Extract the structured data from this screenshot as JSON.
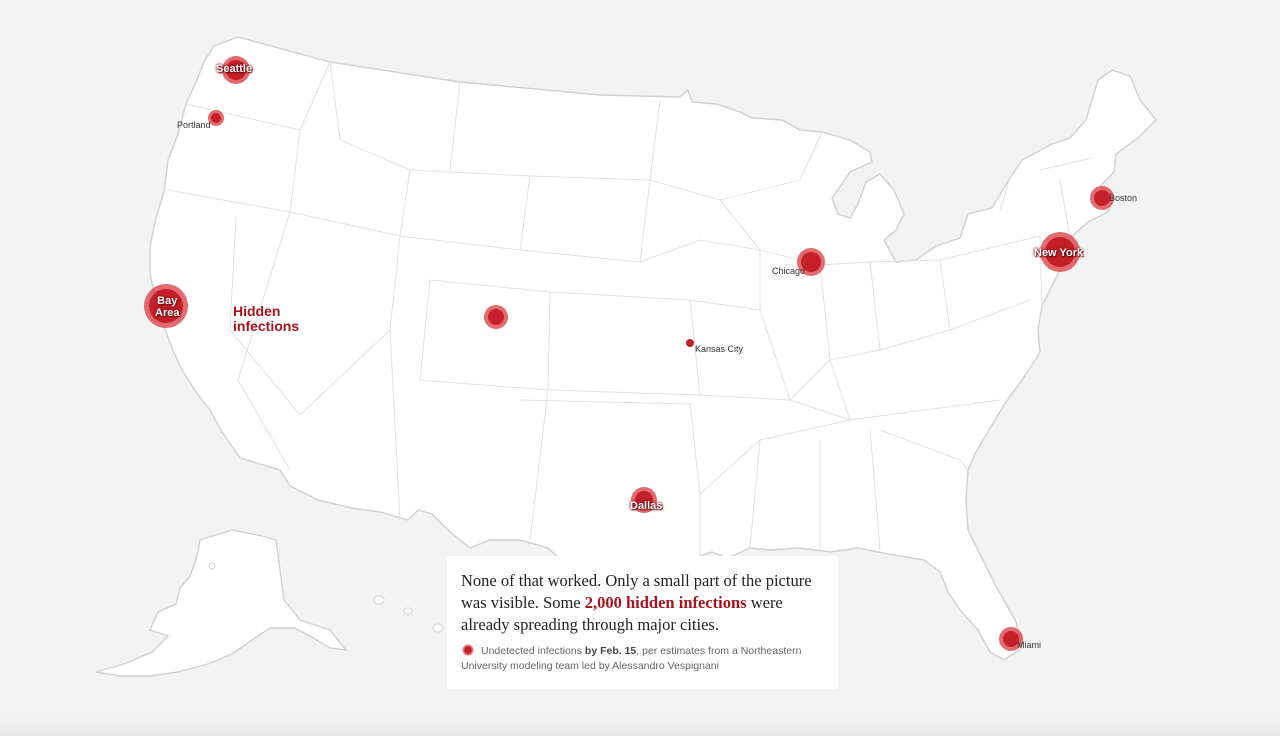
{
  "map": {
    "overlay_label": "Hidden\ninfections",
    "cities": [
      {
        "name": "Seattle",
        "style": "big"
      },
      {
        "name": "Portland",
        "style": "small"
      },
      {
        "name": "Bay\nArea",
        "style": "big"
      },
      {
        "name": "Chicago",
        "style": "small"
      },
      {
        "name": "Kansas City",
        "style": "small"
      },
      {
        "name": "Boston",
        "style": "small"
      },
      {
        "name": "New York",
        "style": "big"
      },
      {
        "name": "Dallas",
        "style": "big"
      },
      {
        "name": "Miami",
        "style": "small"
      }
    ],
    "blob_color": "#c5202a"
  },
  "caption": {
    "text_before": "None of that worked. Only a small part of the picture was visible. Some ",
    "highlight": "2,000 hidden infections",
    "text_after": " were already spreading through major cities.",
    "highlight_color": "#a8141d",
    "legend_prefix": "Undetected infections ",
    "legend_bold": "by Feb. 15",
    "legend_suffix": ", per estimates from a Northeastern University modeling team led by Alessandro Vespignani",
    "legend_icon": "infection-blob-icon"
  }
}
